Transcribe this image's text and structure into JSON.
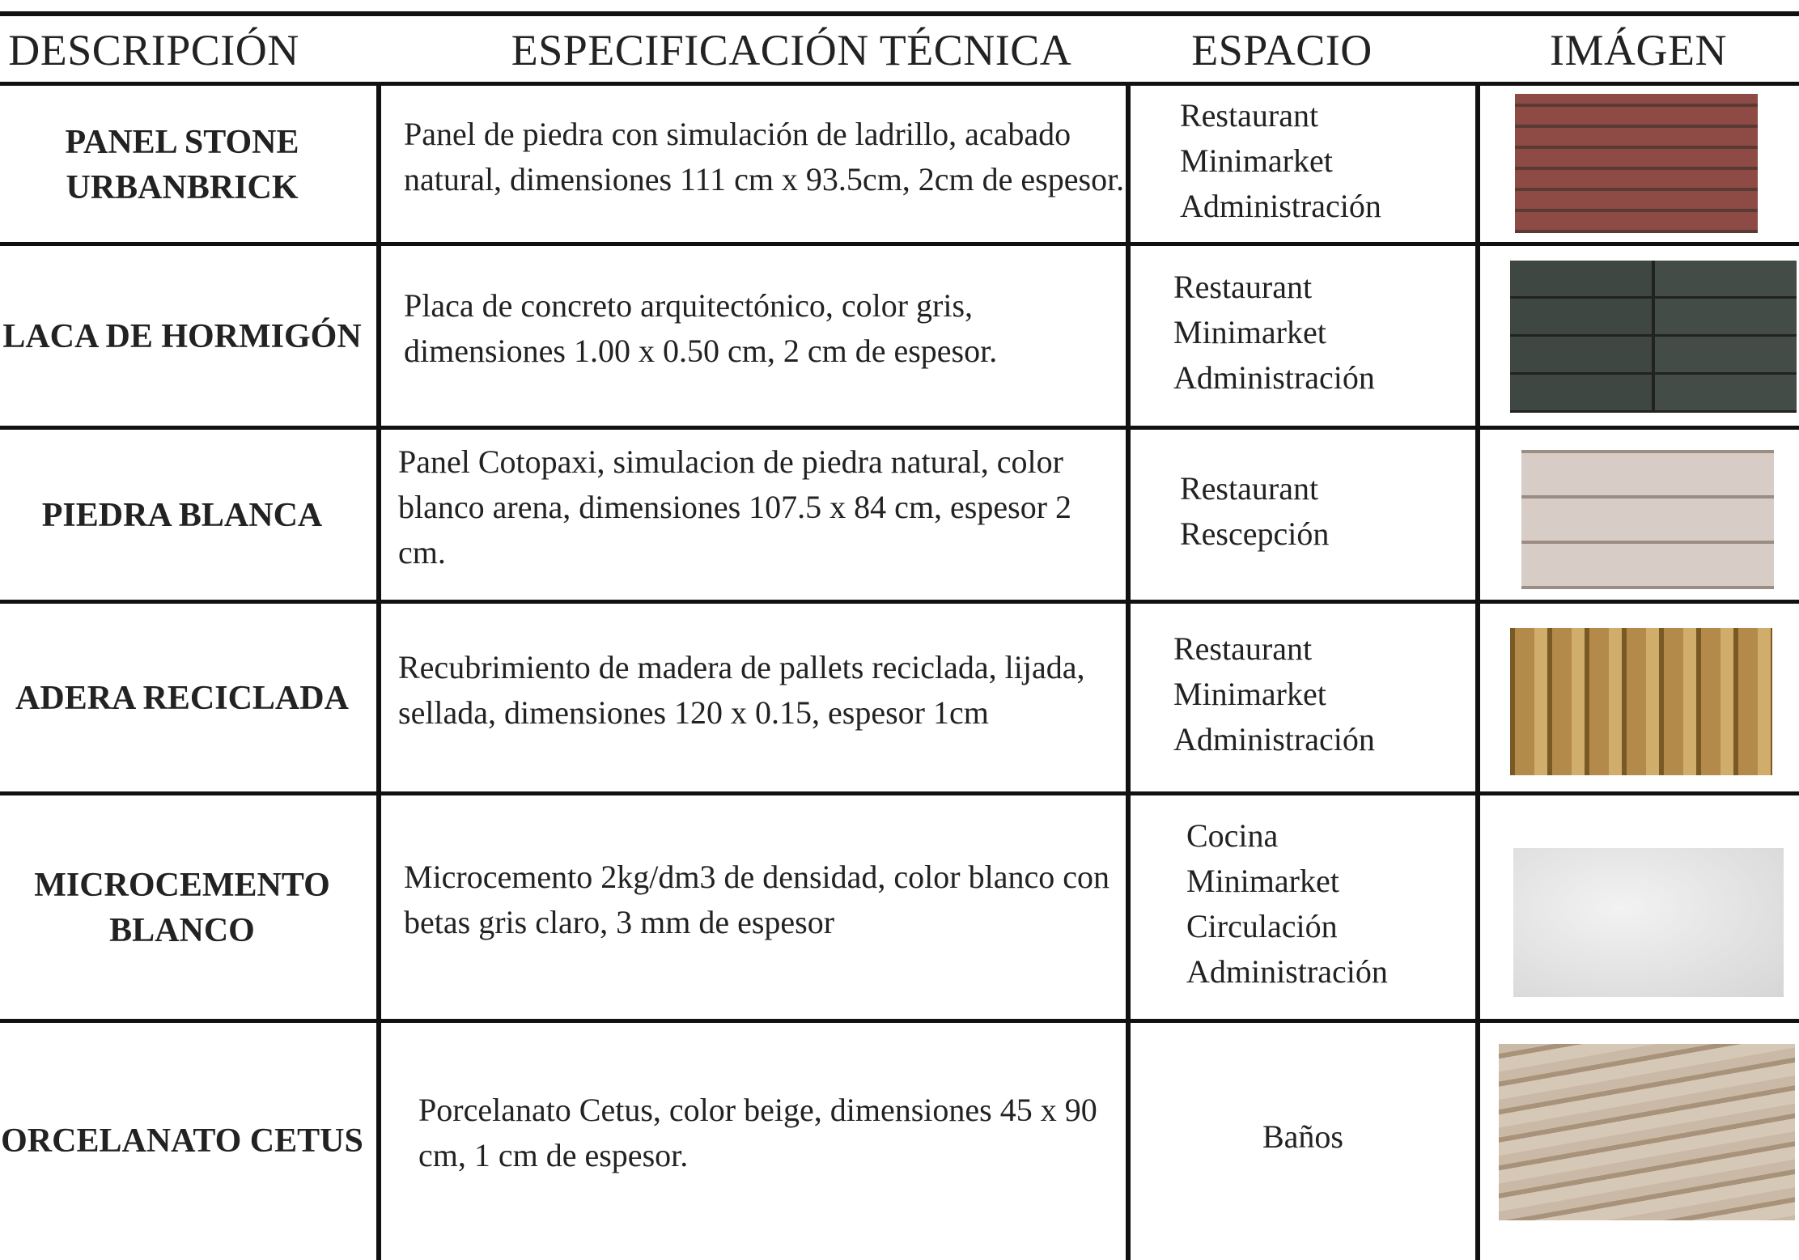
{
  "header": {
    "columns": [
      "DESCRIPCIÓN",
      "ESPECIFICACIÓN TÉCNICA",
      "ESPACIO",
      "IMÁGEN"
    ]
  },
  "table": {
    "rows": [
      {
        "description": "PANEL STONE URBANBRICK",
        "specification": "Panel de piedra con simulación de ladrillo, acabado natural, dimensiones 111 cm x 93.5cm, 2cm de espesor.",
        "spaces": [
          "Restaurant",
          "Minimarket",
          "Administración"
        ]
      },
      {
        "description": "LACA DE HORMIGÓN",
        "specification": "Placa de concreto arquitectónico, color gris, dimensiones 1.00 x 0.50 cm, 2 cm de espesor.",
        "spaces": [
          "Restaurant",
          "Minimarket",
          "Administración"
        ]
      },
      {
        "description": "PIEDRA BLANCA",
        "specification": "Panel Cotopaxi, simulacion de piedra natural, color blanco arena, dimensiones 107.5 x 84 cm, espesor 2 cm.",
        "spaces": [
          "Restaurant",
          "Rescepción"
        ]
      },
      {
        "description": "ADERA RECICLADA",
        "specification": "Recubrimiento de madera de pallets reciclada, lijada, sellada, dimensiones 120 x 0.15, espesor 1cm",
        "spaces": [
          "Restaurant",
          "Minimarket",
          "Administración"
        ]
      },
      {
        "description": "MICROCEMENTO BLANCO",
        "specification": "Microcemento 2kg/dm3 de densidad, color blanco con betas gris claro, 3 mm de espesor",
        "spaces": [
          "Cocina",
          "Minimarket",
          "Circulación",
          "Administración"
        ]
      },
      {
        "description": "ORCELANATO CETUS",
        "specification": "Porcelanato Cetus, color beige, dimensiones 45 x 90 cm, 1 cm de espesor.",
        "spaces": [
          "Baños"
        ]
      }
    ]
  }
}
